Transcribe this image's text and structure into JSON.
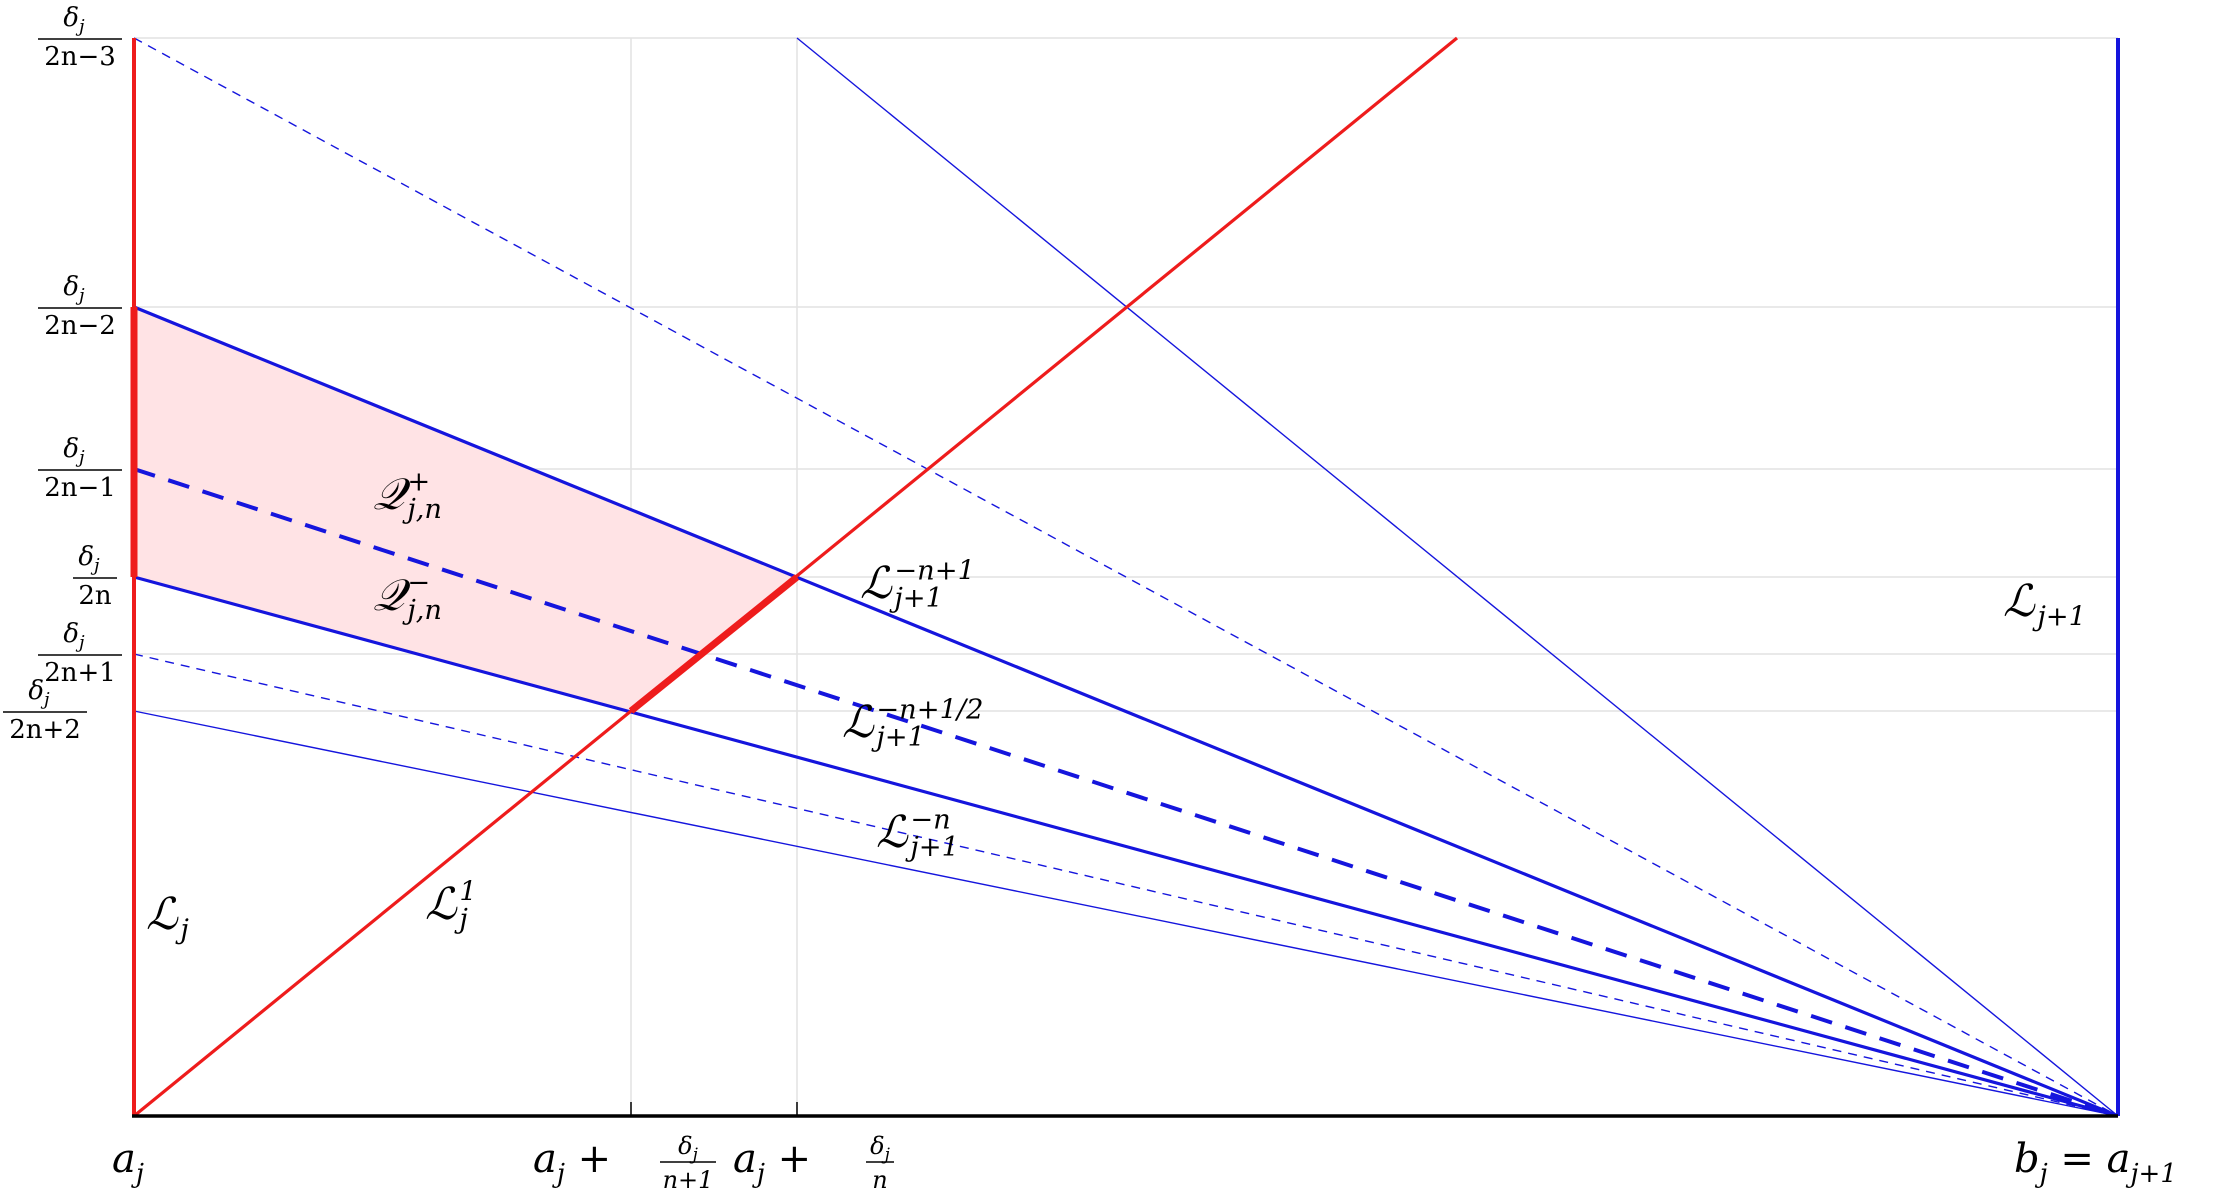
{
  "colors": {
    "red": "#ee1c1c",
    "blue": "#1515dd",
    "fill": "#ffe3e5",
    "grid": "#e2e2e2",
    "axis": "#000000"
  },
  "y_ticks": [
    {
      "num": "δ",
      "sub": "j",
      "den": "2n−3"
    },
    {
      "num": "δ",
      "sub": "j",
      "den": "2n−2"
    },
    {
      "num": "δ",
      "sub": "j",
      "den": "2n−1"
    },
    {
      "num": "δ",
      "sub": "j",
      "den": "2n"
    },
    {
      "num": "δ",
      "sub": "j",
      "den": "2n+1"
    },
    {
      "num": "δ",
      "sub": "j",
      "den": "2n+2"
    }
  ],
  "x_ticks": {
    "left": {
      "base": "a",
      "sub": "j"
    },
    "mid1": {
      "base": "a",
      "sub": "j",
      "plus": "+",
      "num": "δ",
      "numsub": "j",
      "den": "n+1"
    },
    "mid2": {
      "base": "a",
      "sub": "j",
      "plus": "+",
      "num": "δ",
      "numsub": "j",
      "den": "n"
    },
    "right": {
      "base": "b",
      "sub": "j",
      "eq": "=",
      "base2": "a",
      "sub2": "j+1"
    }
  },
  "labels": {
    "Lj": {
      "base": "ℒ",
      "sub": "j"
    },
    "Lj1": {
      "base": "ℒ",
      "sup": "1",
      "sub": "j"
    },
    "Ljp1": {
      "base": "ℒ",
      "sub": "j+1"
    },
    "Ln1": {
      "base": "ℒ",
      "sup": "−n+1",
      "sub": "j+1"
    },
    "Lhalf": {
      "base": "ℒ",
      "sup": "−n+1/2",
      "sub": "j+1"
    },
    "Ln": {
      "base": "ℒ",
      "sup": "−n",
      "sub": "j+1"
    },
    "Qplus": {
      "base": "𝒬",
      "sup": "+",
      "sub": "j,n"
    },
    "Qminus": {
      "base": "𝒬",
      "sup": "−",
      "sub": "j,n"
    }
  }
}
